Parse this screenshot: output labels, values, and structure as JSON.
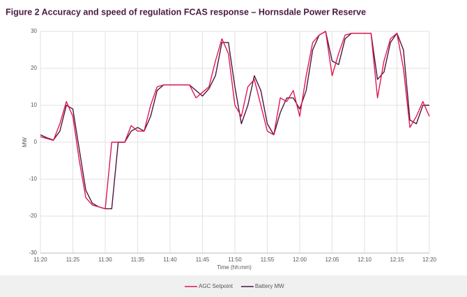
{
  "chart_data": {
    "type": "line",
    "title": "Figure 2  Accuracy and speed of regulation FCAS response – Hornsdale Power Reserve",
    "x_label": "Time (hh:mm)",
    "y_label": "MW",
    "categories": [
      "11:20",
      "11:21",
      "11:22",
      "11:23",
      "11:24",
      "11:25",
      "11:26",
      "11:27",
      "11:28",
      "11:29",
      "11:30",
      "11:31",
      "11:32",
      "11:33",
      "11:34",
      "11:35",
      "11:36",
      "11:37",
      "11:38",
      "11:39",
      "11:40",
      "11:41",
      "11:42",
      "11:43",
      "11:44",
      "11:45",
      "11:46",
      "11:47",
      "11:48",
      "11:49",
      "11:50",
      "11:51",
      "11:52",
      "11:53",
      "11:54",
      "11:55",
      "11:56",
      "11:57",
      "11:58",
      "11:59",
      "12:00",
      "12:01",
      "12:02",
      "12:03",
      "12:04",
      "12:05",
      "12:06",
      "12:07",
      "12:08",
      "12:09",
      "12:10",
      "12:11",
      "12:12",
      "12:13",
      "12:14",
      "12:15",
      "12:16",
      "12:17",
      "12:18",
      "12:19",
      "12:20"
    ],
    "series": [
      {
        "name": "AGC Setpoint",
        "color": "#e0174f",
        "values": [
          1.5,
          1,
          0.5,
          5,
          11,
          7,
          -5,
          -15,
          -17,
          -17.5,
          -18,
          0,
          0,
          0,
          4.5,
          3,
          3,
          10,
          15,
          15.5,
          15.5,
          15.5,
          15.5,
          15.5,
          12,
          13.5,
          15,
          22,
          28,
          24,
          10,
          7,
          15,
          17,
          10,
          3,
          2,
          12,
          11,
          14,
          7,
          18,
          27,
          29,
          30,
          18,
          24,
          29,
          29.5,
          29.5,
          29.5,
          29.5,
          12,
          22,
          28,
          29.5,
          20,
          4,
          7,
          11,
          7
        ]
      },
      {
        "name": "Battery MW",
        "color": "#4b1440",
        "values": [
          2,
          1.2,
          0.6,
          3,
          10,
          9,
          -2,
          -13,
          -16.5,
          -17.5,
          -18,
          -18,
          0,
          0,
          3,
          4,
          3,
          7,
          14,
          15.5,
          15.5,
          15.5,
          15.5,
          15.5,
          14,
          12.5,
          14.5,
          18,
          27,
          27,
          15,
          5,
          10,
          18,
          14,
          5,
          2,
          8,
          12,
          12,
          9,
          14,
          25,
          29,
          30,
          22,
          21,
          28,
          29.5,
          29.5,
          29.5,
          29.5,
          17,
          19,
          27,
          29.5,
          25,
          6,
          5,
          10,
          10
        ]
      }
    ],
    "ylim": [
      -30,
      30
    ],
    "yticks": [
      -30,
      -20,
      -10,
      0,
      10,
      20,
      30
    ],
    "xticks": [
      "11:20",
      "11:25",
      "11:30",
      "11:35",
      "11:40",
      "11:45",
      "11:50",
      "11:55",
      "12:00",
      "12:05",
      "12:10",
      "12:15",
      "12:20"
    ],
    "grid": true,
    "legend": "bottom"
  }
}
